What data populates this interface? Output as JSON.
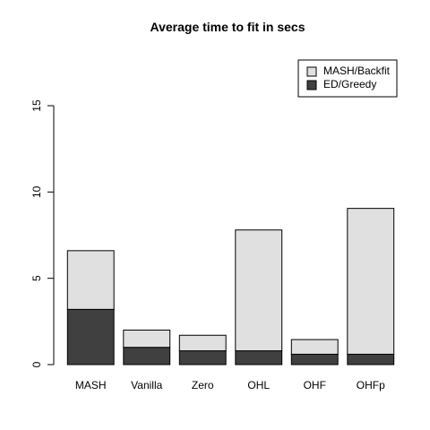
{
  "chart_data": {
    "type": "bar",
    "stacked": true,
    "title": "Average time to fit in secs",
    "xlabel": "",
    "ylabel": "",
    "categories": [
      "MASH",
      "Vanilla",
      "Zero",
      "OHL",
      "OHF",
      "OHFp"
    ],
    "series": [
      {
        "name": "ED/Greedy",
        "values": [
          3.2,
          1.0,
          0.8,
          0.8,
          0.6,
          0.6
        ],
        "color": "#404040"
      },
      {
        "name": "MASH/Backfit",
        "values": [
          3.4,
          1.0,
          0.9,
          7.0,
          0.85,
          8.45
        ],
        "color": "#e0e0e0"
      }
    ],
    "ylim": [
      0,
      15
    ],
    "yticks": [
      0,
      5,
      10,
      15
    ],
    "grid": false,
    "legend": {
      "position": "top-right",
      "order": [
        "MASH/Backfit",
        "ED/Greedy"
      ]
    }
  }
}
